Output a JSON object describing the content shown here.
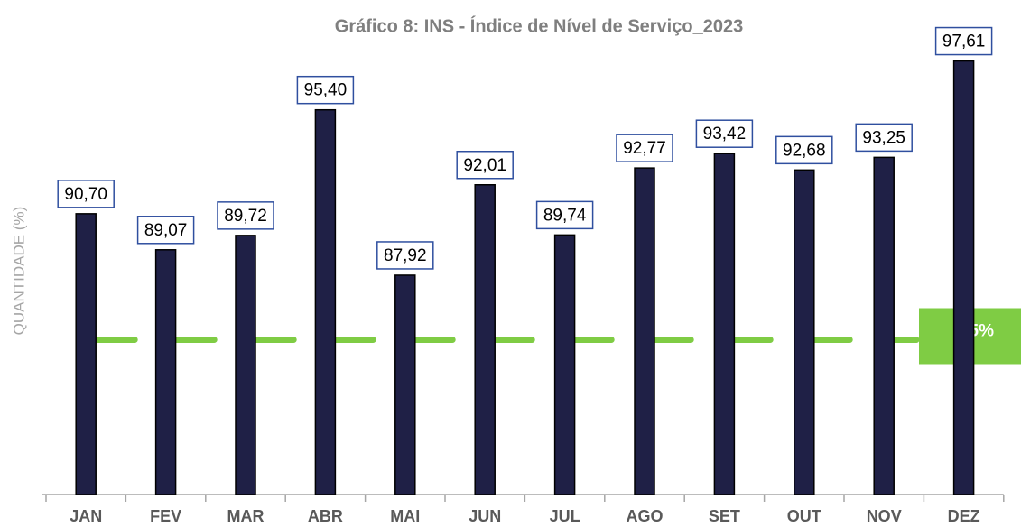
{
  "chart_data": {
    "type": "bar",
    "title": "Gráfico 8: INS - Índice de Nível de Serviço_2023",
    "y_label": "QUANTIDADE  (%)",
    "categories": [
      "JAN",
      "FEV",
      "MAR",
      "ABR",
      "MAI",
      "JUN",
      "JUL",
      "AGO",
      "SET",
      "OUT",
      "NOV",
      "DEZ"
    ],
    "values": [
      90.7,
      89.07,
      89.72,
      95.4,
      87.92,
      92.01,
      89.74,
      92.77,
      93.42,
      92.68,
      93.25,
      97.61
    ],
    "value_labels": [
      "90,70",
      "89,07",
      "89,72",
      "95,40",
      "87,92",
      "92,01",
      "89,74",
      "92,77",
      "93,42",
      "92,68",
      "93,25",
      "97,61"
    ],
    "color": "#1f2046",
    "ylim": [
      78,
      100
    ],
    "target": {
      "value": 85,
      "label": "85%",
      "color": "#7fcc44"
    }
  }
}
